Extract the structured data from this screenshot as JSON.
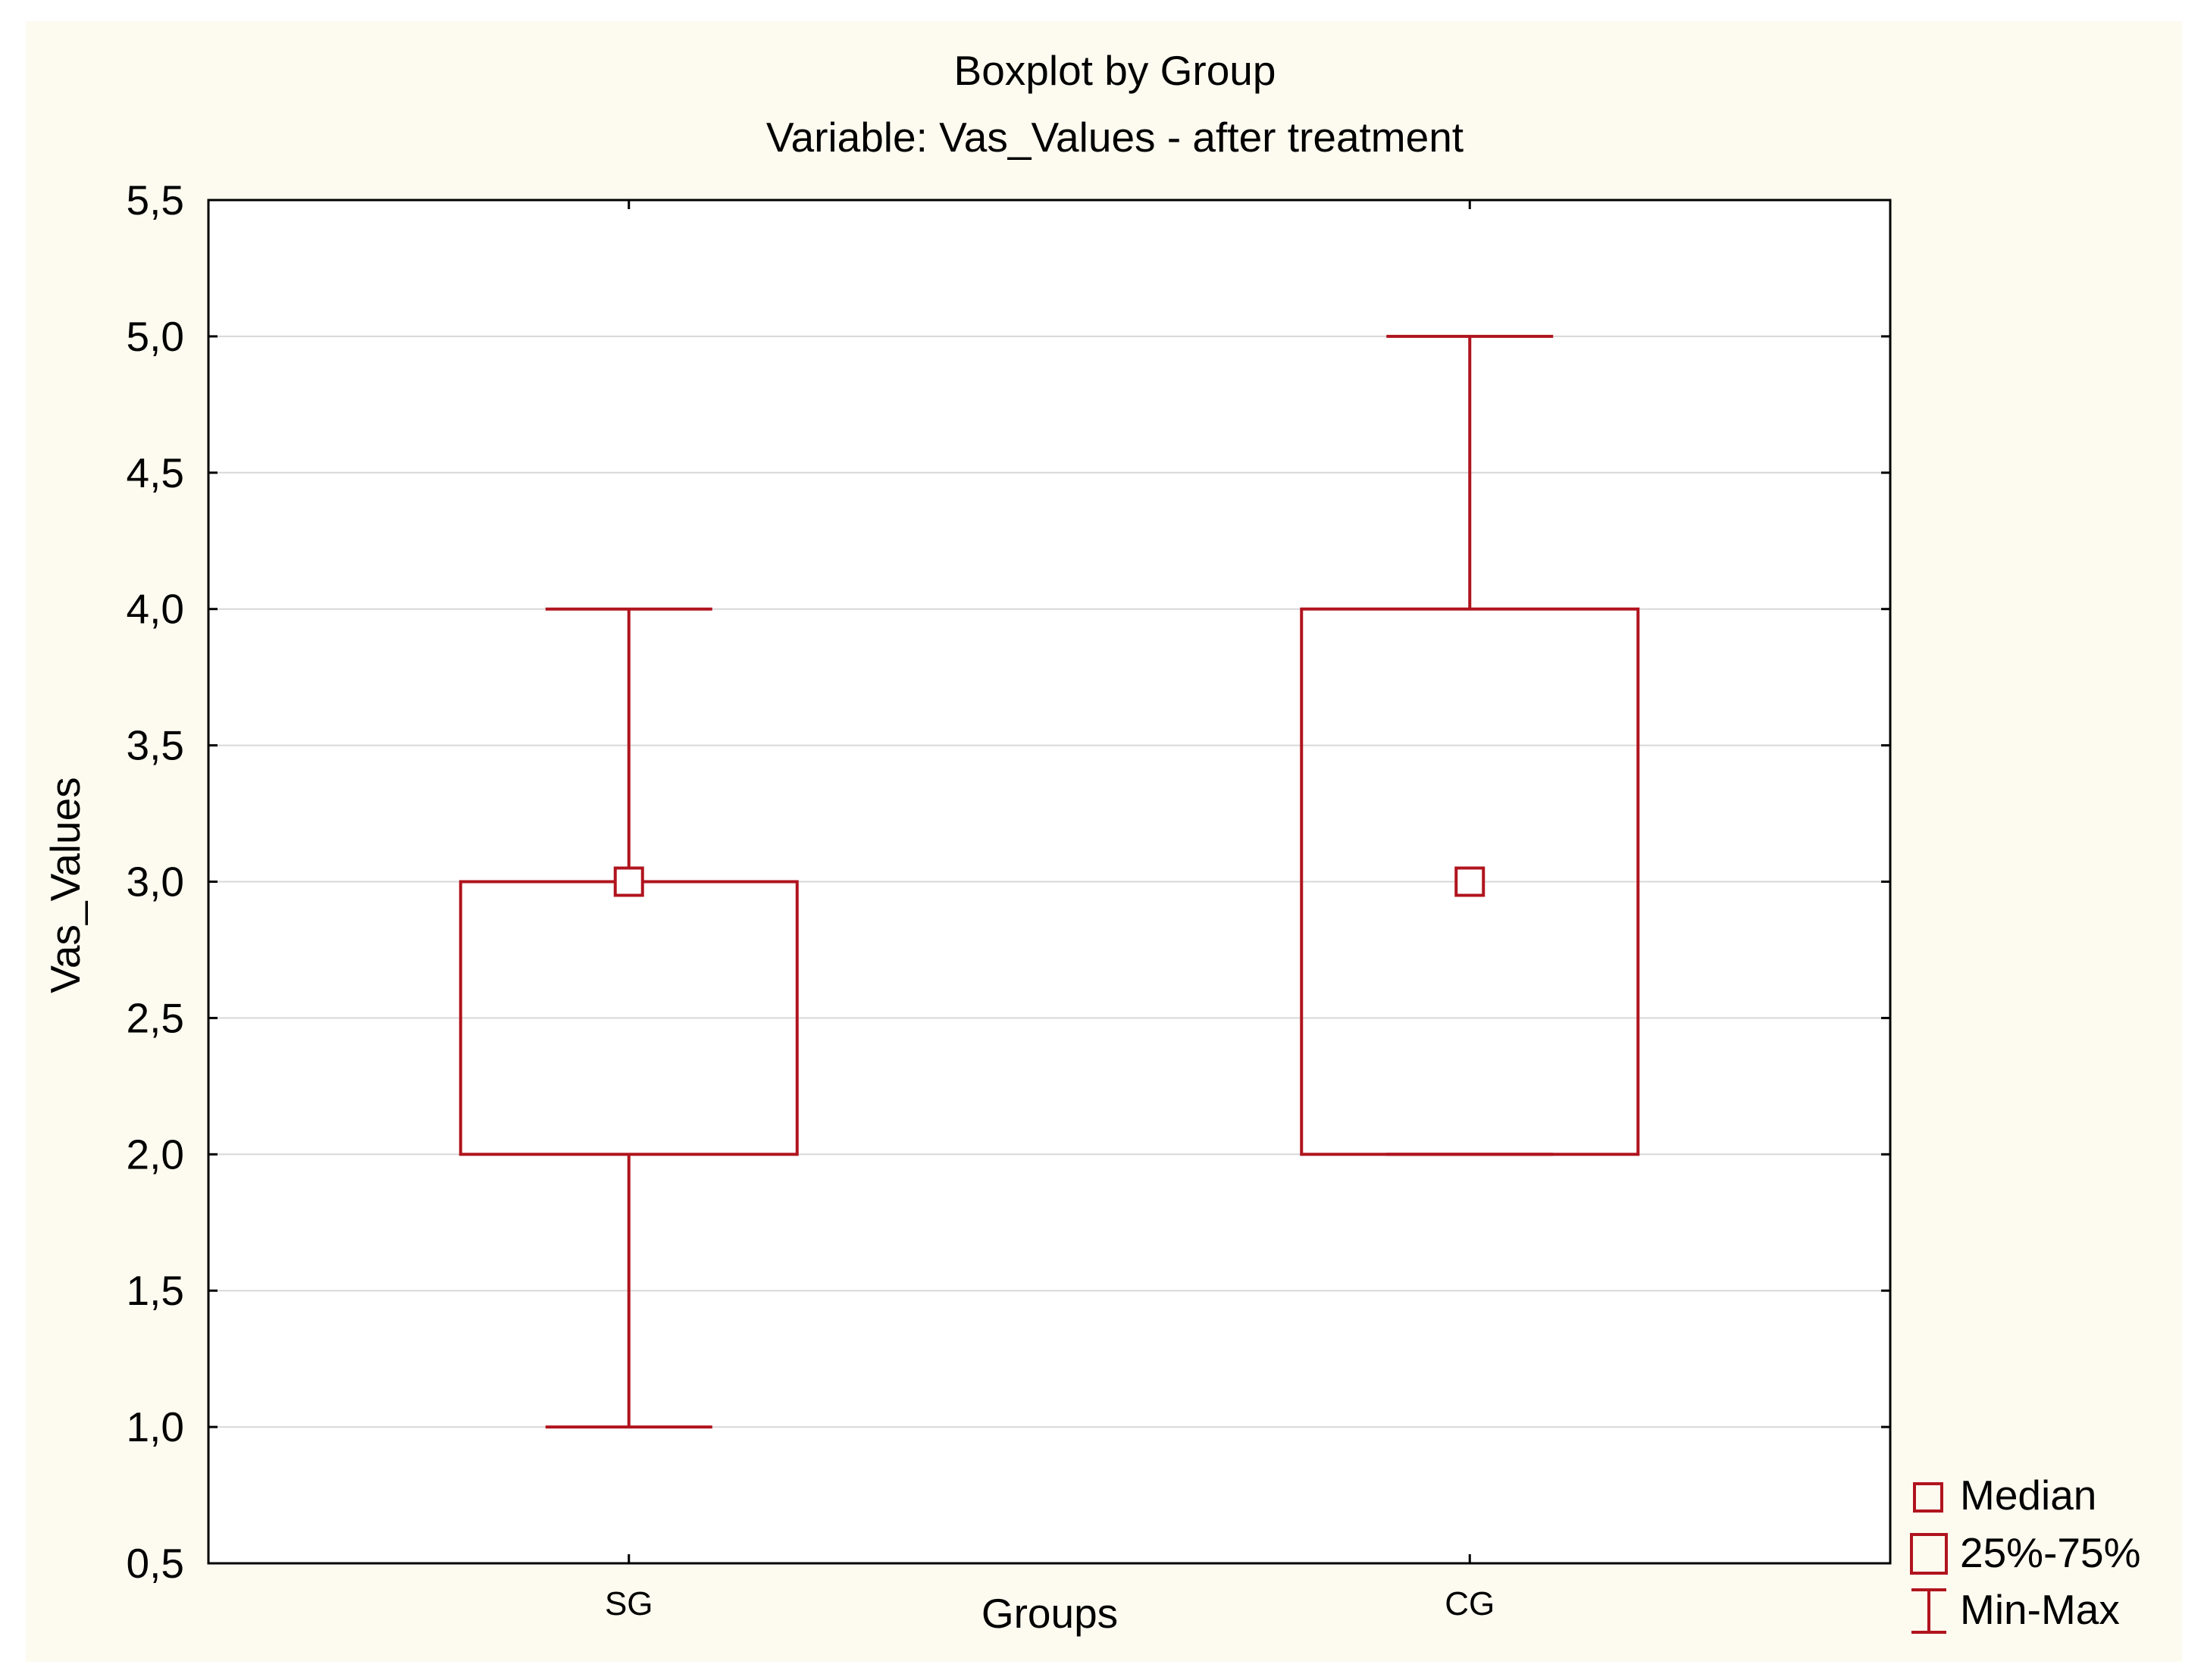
{
  "chart_data": {
    "type": "box",
    "title": "Boxplot by Group",
    "subtitle": "Variable: Vas_Values - after treatment",
    "xlabel": "Groups",
    "ylabel": "Vas_Values",
    "ylim": [
      0.5,
      5.5
    ],
    "y_ticks": [
      0.5,
      1.0,
      1.5,
      2.0,
      2.5,
      3.0,
      3.5,
      4.0,
      4.5,
      5.0,
      5.5
    ],
    "y_tick_labels": [
      "0,5",
      "1,0",
      "1,5",
      "2,0",
      "2,5",
      "3,0",
      "3,5",
      "4,0",
      "4,5",
      "5,0",
      "5,5"
    ],
    "grid": true,
    "legend_position": "bottom-right, outside plot",
    "categories": [
      "SG",
      "CG"
    ],
    "boxes": [
      {
        "group": "SG",
        "min": 1.0,
        "q1": 2.0,
        "median": 3.0,
        "q3": 3.0,
        "max": 4.0
      },
      {
        "group": "CG",
        "min": 2.0,
        "q1": 2.0,
        "median": 3.0,
        "q3": 4.0,
        "max": 5.0
      }
    ],
    "legend": [
      {
        "label": "Median",
        "marker": "small-square"
      },
      {
        "label": "25%-75%",
        "marker": "box"
      },
      {
        "label": "Min-Max",
        "marker": "whisker"
      }
    ],
    "colors": {
      "background": "#fdfbf0",
      "plot_background": "#ffffff",
      "series": "#b0141e",
      "axis": "#000000",
      "grid": "#d8d8d8",
      "text": "#000000"
    }
  }
}
